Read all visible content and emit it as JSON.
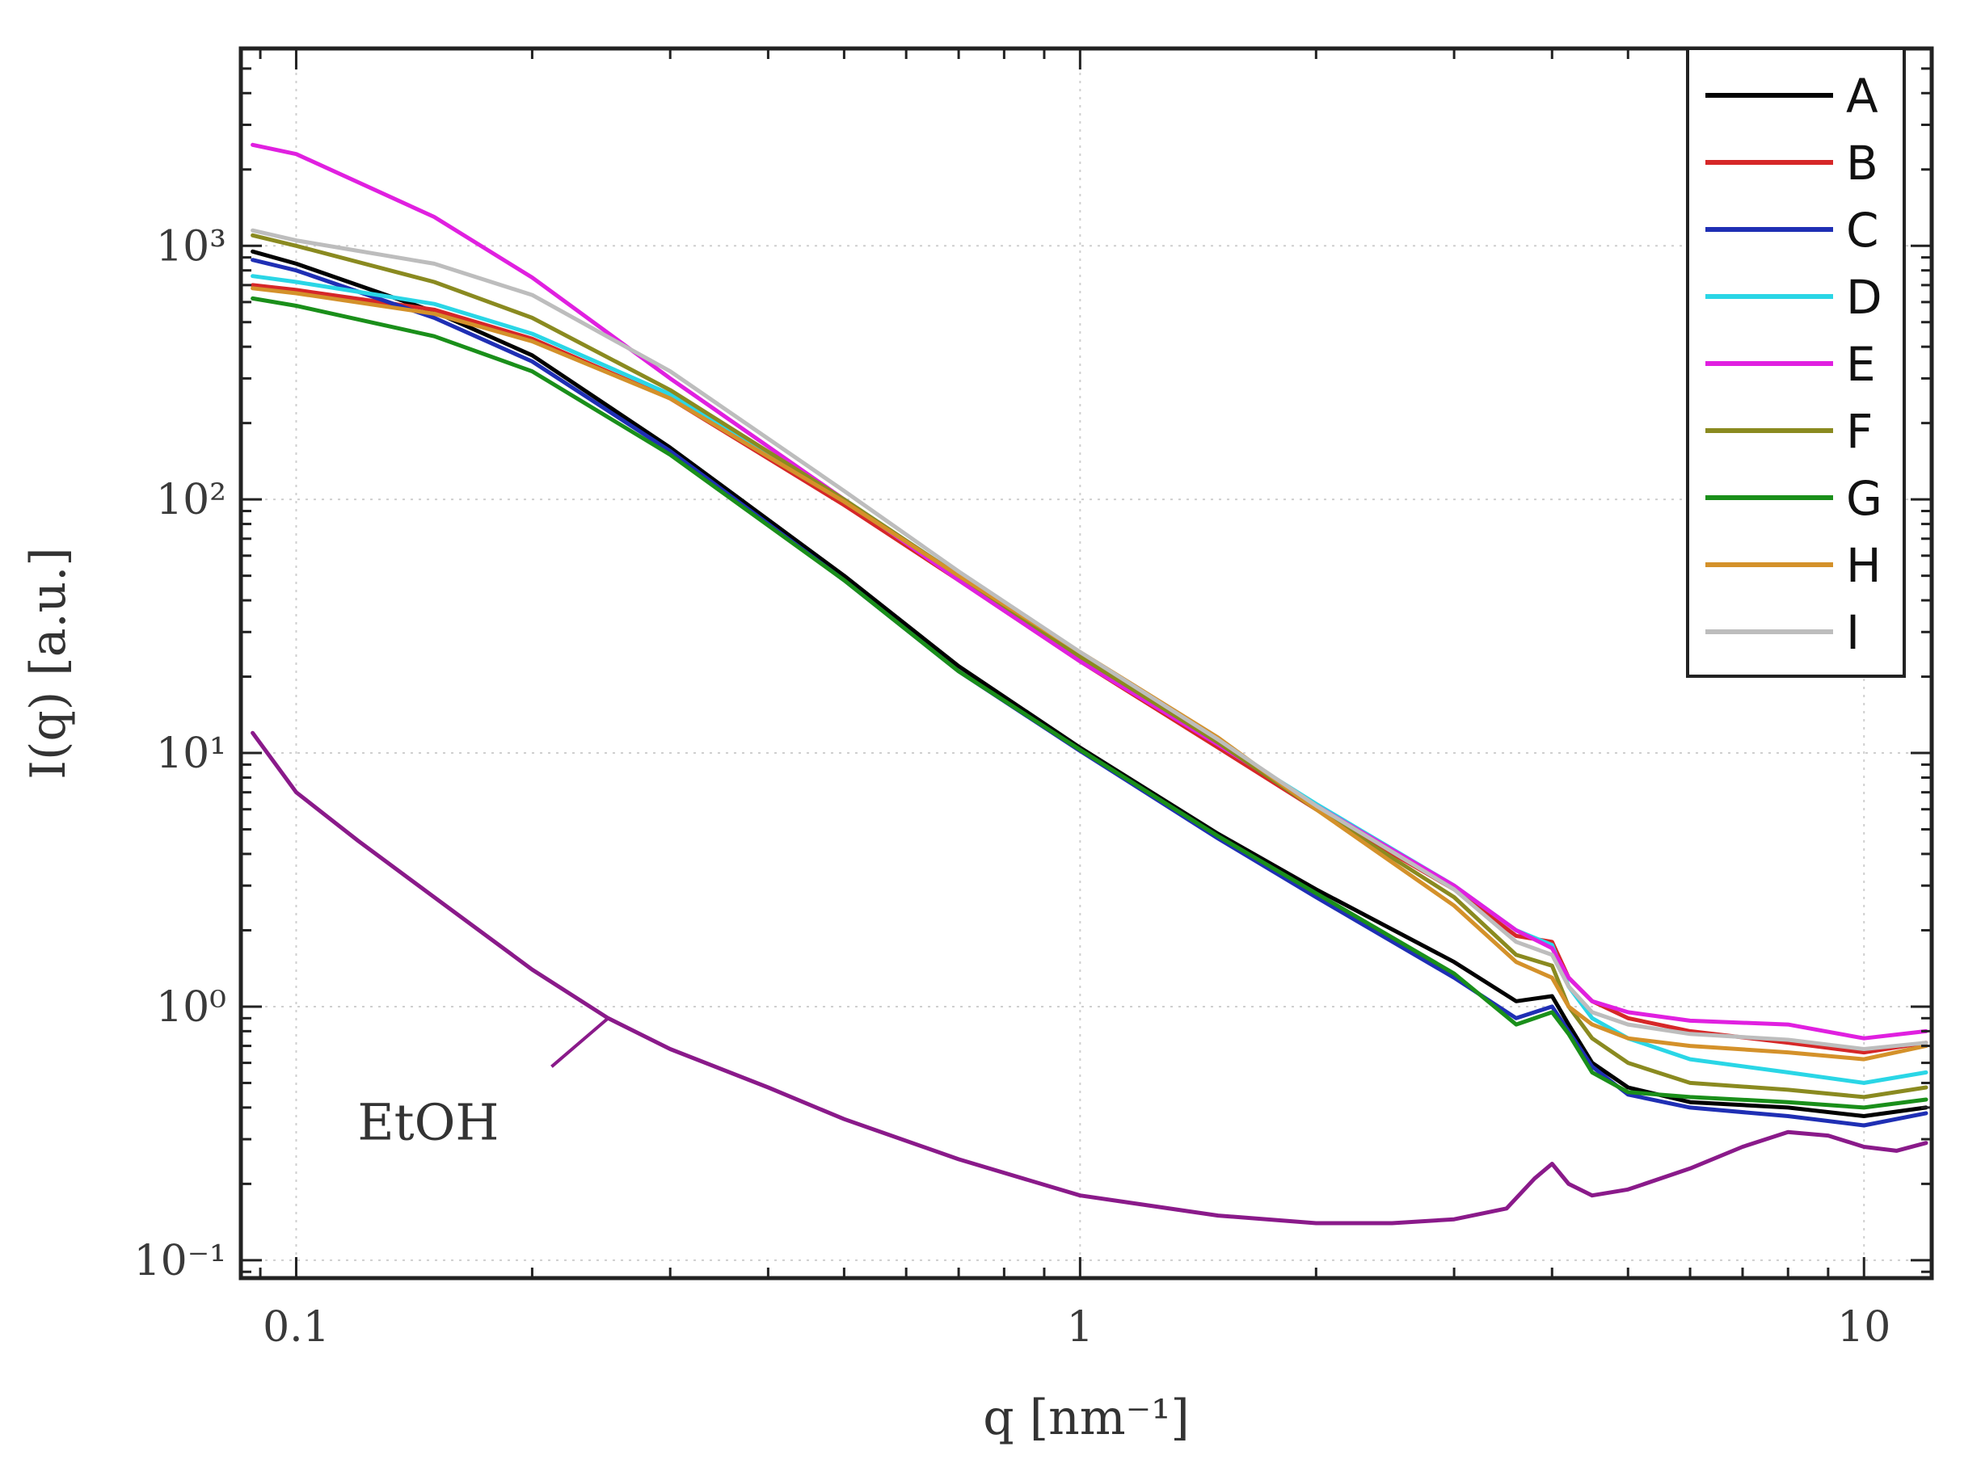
{
  "chart_data": {
    "type": "line",
    "xscale": "log",
    "yscale": "log",
    "xlim": [
      0.085,
      12.2
    ],
    "ylim": [
      0.085,
      6000
    ],
    "xlabel": "q [nm⁻¹]",
    "ylabel": "I(q) [a.u.]",
    "grid": true,
    "legend_position": "top-right",
    "x_ticks": [
      {
        "value": 0.1,
        "label": "0.1"
      },
      {
        "value": 1,
        "label": "1"
      },
      {
        "value": 10,
        "label": "10"
      }
    ],
    "y_ticks": [
      {
        "value": 0.1,
        "label": "10⁻¹"
      },
      {
        "value": 1,
        "label": "10⁰"
      },
      {
        "value": 10,
        "label": "10¹"
      },
      {
        "value": 100,
        "label": "10²"
      },
      {
        "value": 1000,
        "label": "10³"
      }
    ],
    "series": [
      {
        "name": "A",
        "color": "#000000",
        "x": [
          0.088,
          0.1,
          0.15,
          0.2,
          0.3,
          0.5,
          0.7,
          1.0,
          1.5,
          2.0,
          3.0,
          3.6,
          4.0,
          4.2,
          4.5,
          5.0,
          6.0,
          8.0,
          10.0,
          12.0
        ],
        "y": [
          950,
          850,
          550,
          370,
          160,
          50,
          22,
          10.5,
          4.8,
          2.9,
          1.5,
          1.05,
          1.1,
          0.85,
          0.6,
          0.48,
          0.42,
          0.4,
          0.37,
          0.4
        ]
      },
      {
        "name": "B",
        "color": "#d62728",
        "x": [
          0.088,
          0.1,
          0.15,
          0.2,
          0.3,
          0.5,
          0.7,
          1.0,
          1.5,
          2.0,
          3.0,
          3.6,
          4.0,
          4.2,
          4.5,
          5.0,
          6.0,
          8.0,
          10.0,
          12.0
        ],
        "y": [
          700,
          670,
          560,
          430,
          250,
          95,
          48,
          23,
          10.5,
          6.0,
          2.9,
          1.9,
          1.8,
          1.3,
          1.05,
          0.9,
          0.8,
          0.72,
          0.66,
          0.72
        ]
      },
      {
        "name": "C",
        "color": "#1f2fb4",
        "x": [
          0.088,
          0.1,
          0.15,
          0.2,
          0.3,
          0.5,
          0.7,
          1.0,
          1.5,
          2.0,
          3.0,
          3.6,
          4.0,
          4.2,
          4.5,
          5.0,
          6.0,
          8.0,
          10.0,
          12.0
        ],
        "y": [
          880,
          800,
          520,
          350,
          155,
          48,
          21,
          10.2,
          4.6,
          2.7,
          1.3,
          0.9,
          1.0,
          0.8,
          0.58,
          0.45,
          0.4,
          0.37,
          0.34,
          0.38
        ]
      },
      {
        "name": "D",
        "color": "#2ad6e6",
        "x": [
          0.088,
          0.1,
          0.15,
          0.2,
          0.3,
          0.5,
          0.7,
          1.0,
          1.5,
          2.0,
          3.0,
          3.6,
          4.0,
          4.2,
          4.5,
          5.0,
          6.0,
          8.0,
          10.0,
          12.0
        ],
        "y": [
          760,
          720,
          590,
          450,
          260,
          100,
          50,
          24,
          11,
          6.3,
          3.0,
          2.0,
          1.75,
          1.2,
          0.9,
          0.75,
          0.62,
          0.55,
          0.5,
          0.55
        ]
      },
      {
        "name": "E",
        "color": "#e020e0",
        "x": [
          0.088,
          0.1,
          0.15,
          0.2,
          0.3,
          0.5,
          0.7,
          1.0,
          1.5,
          2.0,
          3.0,
          3.6,
          4.0,
          4.2,
          4.5,
          5.0,
          6.0,
          8.0,
          10.0,
          12.0
        ],
        "y": [
          2500,
          2300,
          1300,
          750,
          300,
          100,
          48,
          23,
          10.8,
          6.2,
          3.0,
          2.0,
          1.7,
          1.3,
          1.05,
          0.95,
          0.88,
          0.85,
          0.75,
          0.8
        ]
      },
      {
        "name": "F",
        "color": "#8a8a20",
        "x": [
          0.088,
          0.1,
          0.15,
          0.2,
          0.3,
          0.5,
          0.7,
          1.0,
          1.5,
          2.0,
          3.0,
          3.6,
          4.0,
          4.2,
          4.5,
          5.0,
          6.0,
          8.0,
          10.0,
          12.0
        ],
        "y": [
          1100,
          1000,
          720,
          520,
          270,
          100,
          50,
          24,
          11,
          6.0,
          2.7,
          1.6,
          1.45,
          1.0,
          0.75,
          0.6,
          0.5,
          0.47,
          0.44,
          0.48
        ]
      },
      {
        "name": "G",
        "color": "#1a8f1a",
        "x": [
          0.088,
          0.1,
          0.15,
          0.2,
          0.3,
          0.5,
          0.7,
          1.0,
          1.5,
          2.0,
          3.0,
          3.6,
          4.0,
          4.2,
          4.5,
          5.0,
          6.0,
          8.0,
          10.0,
          12.0
        ],
        "y": [
          620,
          580,
          440,
          320,
          150,
          48,
          21,
          10.3,
          4.7,
          2.8,
          1.35,
          0.85,
          0.95,
          0.78,
          0.55,
          0.46,
          0.44,
          0.42,
          0.4,
          0.43
        ]
      },
      {
        "name": "H",
        "color": "#d4912a",
        "x": [
          0.088,
          0.1,
          0.15,
          0.2,
          0.3,
          0.5,
          0.7,
          1.0,
          1.5,
          2.0,
          3.0,
          3.6,
          4.0,
          4.2,
          4.5,
          5.0,
          6.0,
          8.0,
          10.0,
          12.0
        ],
        "y": [
          680,
          650,
          540,
          420,
          250,
          98,
          50,
          25,
          11.5,
          6.0,
          2.5,
          1.5,
          1.3,
          1.0,
          0.85,
          0.75,
          0.7,
          0.66,
          0.62,
          0.7
        ]
      },
      {
        "name": "I",
        "color": "#bdbdbd",
        "x": [
          0.088,
          0.1,
          0.15,
          0.2,
          0.3,
          0.5,
          0.7,
          1.0,
          1.5,
          2.0,
          3.0,
          3.6,
          4.0,
          4.2,
          4.5,
          5.0,
          6.0,
          8.0,
          10.0,
          12.0
        ],
        "y": [
          1150,
          1050,
          850,
          640,
          320,
          108,
          52,
          25,
          11.3,
          6.2,
          2.9,
          1.8,
          1.6,
          1.2,
          0.95,
          0.85,
          0.78,
          0.74,
          0.68,
          0.72
        ]
      },
      {
        "name": "EtOH",
        "color": "#8a1a8a",
        "in_legend": false,
        "x": [
          0.088,
          0.1,
          0.12,
          0.15,
          0.2,
          0.25,
          0.3,
          0.4,
          0.5,
          0.7,
          1.0,
          1.5,
          2.0,
          2.5,
          3.0,
          3.5,
          3.8,
          4.0,
          4.2,
          4.5,
          5.0,
          6.0,
          7.0,
          8.0,
          9.0,
          10.0,
          11.0,
          12.0
        ],
        "y": [
          12,
          7.0,
          4.5,
          2.7,
          1.4,
          0.9,
          0.68,
          0.48,
          0.36,
          0.25,
          0.18,
          0.15,
          0.14,
          0.14,
          0.145,
          0.16,
          0.21,
          0.24,
          0.2,
          0.18,
          0.19,
          0.23,
          0.28,
          0.32,
          0.31,
          0.28,
          0.27,
          0.29
        ]
      }
    ],
    "annotations": [
      {
        "text": "EtOH",
        "points_to_series": "EtOH",
        "target_x": 0.25,
        "target_y": 0.9
      }
    ]
  }
}
